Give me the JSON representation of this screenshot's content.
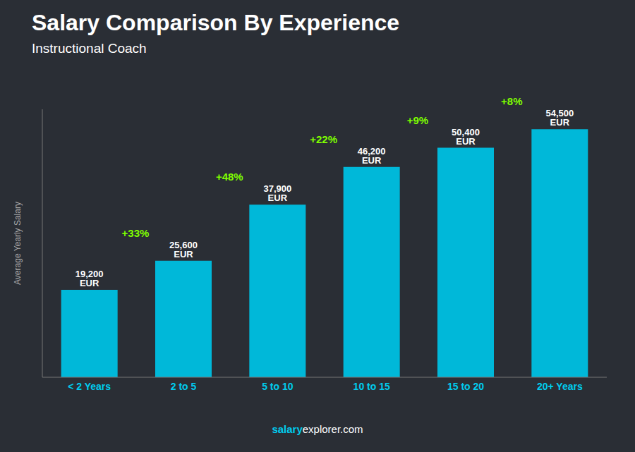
{
  "chart_data": {
    "type": "bar",
    "title": "Salary Comparison By Experience",
    "subtitle": "Instructional Coach",
    "ylabel": "Average Yearly Salary",
    "categories": [
      "< 2 Years",
      "2 to 5",
      "5 to 10",
      "10 to 15",
      "15 to 20",
      "20+ Years"
    ],
    "values": [
      19200,
      25600,
      37900,
      46200,
      50400,
      54500
    ],
    "value_labels": [
      "19,200 EUR",
      "25,600 EUR",
      "37,900 EUR",
      "46,200 EUR",
      "50,400 EUR",
      "54,500 EUR"
    ],
    "data_labels": true,
    "annotations": [
      "+33%",
      "+48%",
      "+22%",
      "+9%",
      "+8%"
    ],
    "footer": [
      "salary",
      "explorer.com"
    ],
    "color": "#00b8d9",
    "ylim": [
      0,
      58860
    ],
    "yticks": [],
    "tick_labels": "x",
    "grid": false
  }
}
